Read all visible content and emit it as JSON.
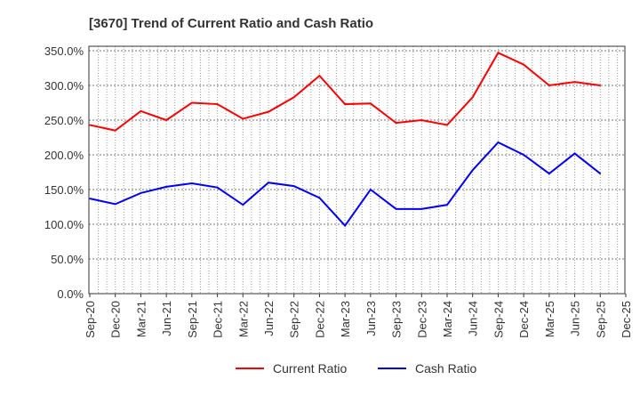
{
  "chart_data": {
    "type": "line",
    "title": "[3670]  Trend of Current Ratio and Cash Ratio",
    "xlabel": "",
    "ylabel": "",
    "ylim": [
      0,
      350
    ],
    "yticks": [
      "0.0%",
      "50.0%",
      "100.0%",
      "150.0%",
      "200.0%",
      "250.0%",
      "300.0%",
      "350.0%"
    ],
    "xticks": [
      "Sep-20",
      "Dec-20",
      "Mar-21",
      "Jun-21",
      "Sep-21",
      "Dec-21",
      "Mar-22",
      "Jun-22",
      "Sep-22",
      "Dec-22",
      "Mar-23",
      "Jun-23",
      "Sep-23",
      "Dec-23",
      "Mar-24",
      "Jun-24",
      "Sep-24",
      "Dec-24",
      "Mar-25",
      "Jun-25",
      "Sep-25",
      "Dec-25"
    ],
    "x": [
      "Sep-20",
      "Dec-20",
      "Mar-21",
      "Jun-21",
      "Sep-21",
      "Dec-21",
      "Mar-22",
      "Jun-22",
      "Sep-22",
      "Dec-22",
      "Mar-23",
      "Jun-23",
      "Sep-23",
      "Dec-23",
      "Mar-24",
      "Jun-24",
      "Sep-24",
      "Dec-24",
      "Mar-25",
      "Jun-25",
      "Sep-25"
    ],
    "grid": true,
    "legend_position": "bottom",
    "series": [
      {
        "name": "Current Ratio",
        "color": "#ff0000",
        "values": [
          243,
          235,
          263,
          250,
          275,
          273,
          252,
          262,
          283,
          314,
          273,
          274,
          246,
          250,
          243,
          283,
          347,
          330,
          300,
          305,
          300
        ]
      },
      {
        "name": "Cash Ratio",
        "color": "#0000ff",
        "values": [
          137,
          129,
          145,
          154,
          159,
          153,
          128,
          160,
          155,
          138,
          98,
          150,
          122,
          122,
          128,
          178,
          218,
          200,
          173,
          202,
          173
        ]
      }
    ]
  }
}
